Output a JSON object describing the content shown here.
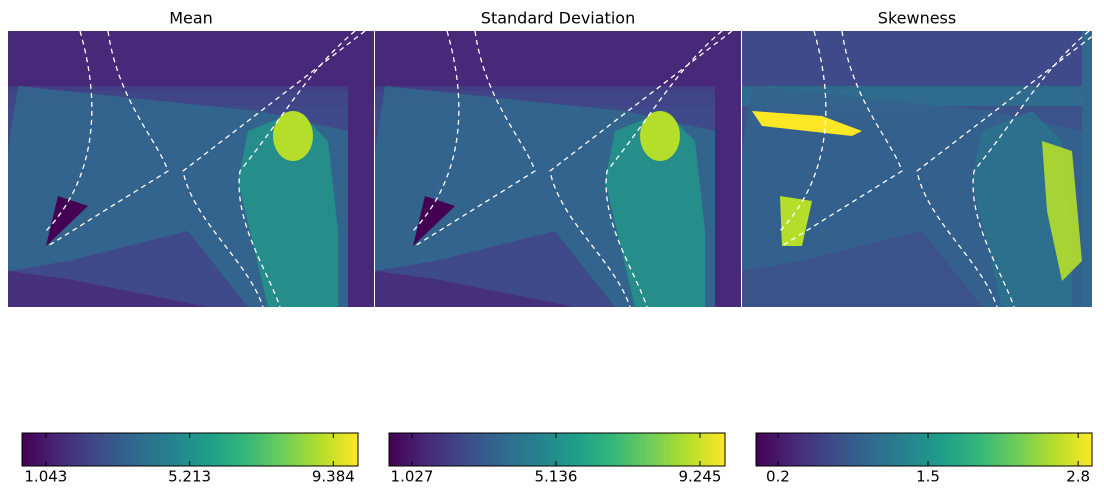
{
  "chart_data": [
    {
      "type": "heatmap",
      "title": "Mean",
      "colormap": "viridis",
      "clim": [
        0.35,
        10.1
      ],
      "colorbar_ticks": [
        1.043,
        5.213,
        9.384
      ]
    },
    {
      "type": "heatmap",
      "title": "Standard Deviation",
      "colormap": "viridis",
      "clim": [
        0.37,
        9.96
      ],
      "colorbar_ticks": [
        1.027,
        5.136,
        9.245
      ]
    },
    {
      "type": "heatmap",
      "title": "Skewness",
      "colormap": "viridis",
      "clim": [
        0.01,
        2.92
      ],
      "colorbar_ticks": [
        0.2,
        1.5,
        2.8
      ]
    }
  ]
}
